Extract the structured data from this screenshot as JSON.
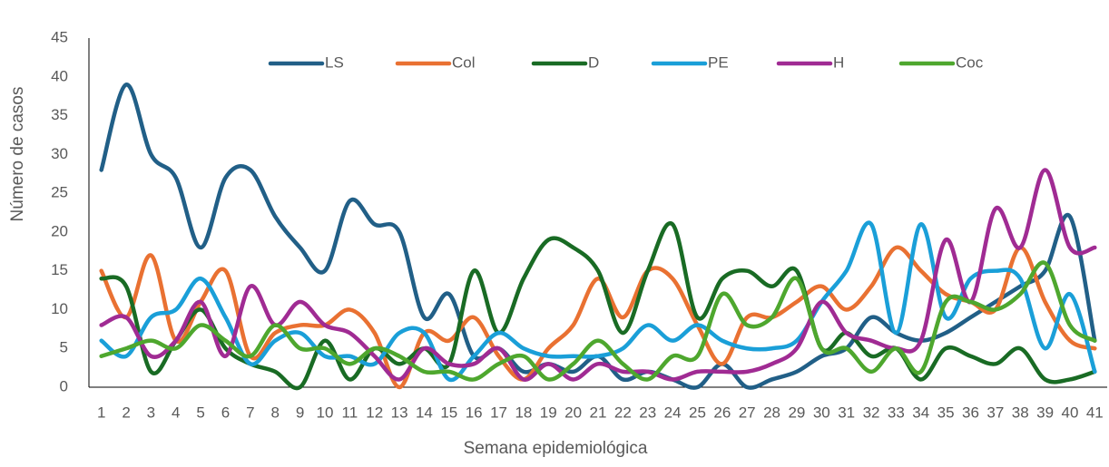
{
  "chart_data": {
    "type": "line",
    "categories": [
      "1",
      "2",
      "3",
      "4",
      "5",
      "6",
      "7",
      "8",
      "9",
      "10",
      "11",
      "12",
      "13",
      "14",
      "15",
      "16",
      "17",
      "18",
      "19",
      "20",
      "21",
      "22",
      "23",
      "24",
      "25",
      "26",
      "27",
      "28",
      "29",
      "30",
      "31",
      "32",
      "33",
      "34",
      "35",
      "36",
      "37",
      "38",
      "39",
      "40",
      "41"
    ],
    "series": [
      {
        "name": "LS",
        "color": "#215f87",
        "values": [
          28,
          39,
          30,
          27,
          18,
          27,
          28,
          22,
          18,
          15,
          24,
          21,
          20,
          9,
          12,
          4,
          5,
          2,
          3,
          2,
          4,
          1,
          2,
          1,
          0,
          3,
          0,
          1,
          2,
          4,
          5,
          9,
          7,
          6,
          7,
          9,
          11,
          13,
          15,
          22,
          6
        ]
      },
      {
        "name": "Col",
        "color": "#e97132",
        "values": [
          15,
          9,
          17,
          6,
          11,
          15,
          4,
          7,
          8,
          8,
          10,
          7,
          0,
          7,
          6,
          9,
          4,
          1,
          5,
          8,
          14,
          9,
          15,
          14,
          8,
          3,
          9,
          9,
          11,
          13,
          10,
          13,
          18,
          15,
          12,
          11,
          10,
          18,
          11,
          6,
          5
        ]
      },
      {
        "name": "D",
        "color": "#196b24",
        "values": [
          14,
          13,
          2,
          6,
          10,
          5,
          3,
          2,
          0,
          6,
          1,
          5,
          3,
          5,
          3,
          15,
          7,
          14,
          19,
          18,
          15,
          7,
          15,
          21,
          9,
          14,
          15,
          13,
          15,
          5,
          7,
          4,
          5,
          1,
          5,
          4,
          3,
          5,
          1,
          1,
          2
        ]
      },
      {
        "name": "PE",
        "color": "#1a9fd8",
        "values": [
          6,
          4,
          9,
          10,
          14,
          9,
          3,
          6,
          7,
          4,
          4,
          3,
          7,
          7,
          1,
          4,
          7,
          5,
          4,
          4,
          4,
          5,
          8,
          6,
          8,
          6,
          5,
          5,
          6,
          11,
          15,
          21,
          7,
          21,
          9,
          14,
          15,
          14,
          5,
          12,
          2
        ]
      },
      {
        "name": "H",
        "color": "#a02b93",
        "values": [
          8,
          9,
          4,
          6,
          11,
          4,
          13,
          8,
          11,
          8,
          7,
          4,
          1,
          5,
          3,
          3,
          5,
          1,
          3,
          1,
          3,
          2,
          2,
          1,
          2,
          2,
          2,
          3,
          5,
          11,
          7,
          6,
          5,
          6,
          19,
          11,
          23,
          18,
          28,
          18,
          18
        ]
      },
      {
        "name": "Coc",
        "color": "#4ea72e",
        "values": [
          4,
          5,
          6,
          5,
          8,
          6,
          4,
          8,
          5,
          5,
          3,
          5,
          4,
          2,
          2,
          1,
          3,
          4,
          1,
          3,
          6,
          3,
          1,
          4,
          4,
          12,
          8,
          9,
          14,
          5,
          5,
          2,
          5,
          2,
          11,
          11,
          10,
          12,
          16,
          8,
          6
        ]
      }
    ],
    "xlabel": "Semana epidemiológica",
    "ylabel": "Número de casos",
    "ylim": [
      0,
      45
    ],
    "yticks": [
      0,
      5,
      10,
      15,
      20,
      25,
      30,
      35,
      40,
      45
    ],
    "legend": "top",
    "smooth": true
  }
}
